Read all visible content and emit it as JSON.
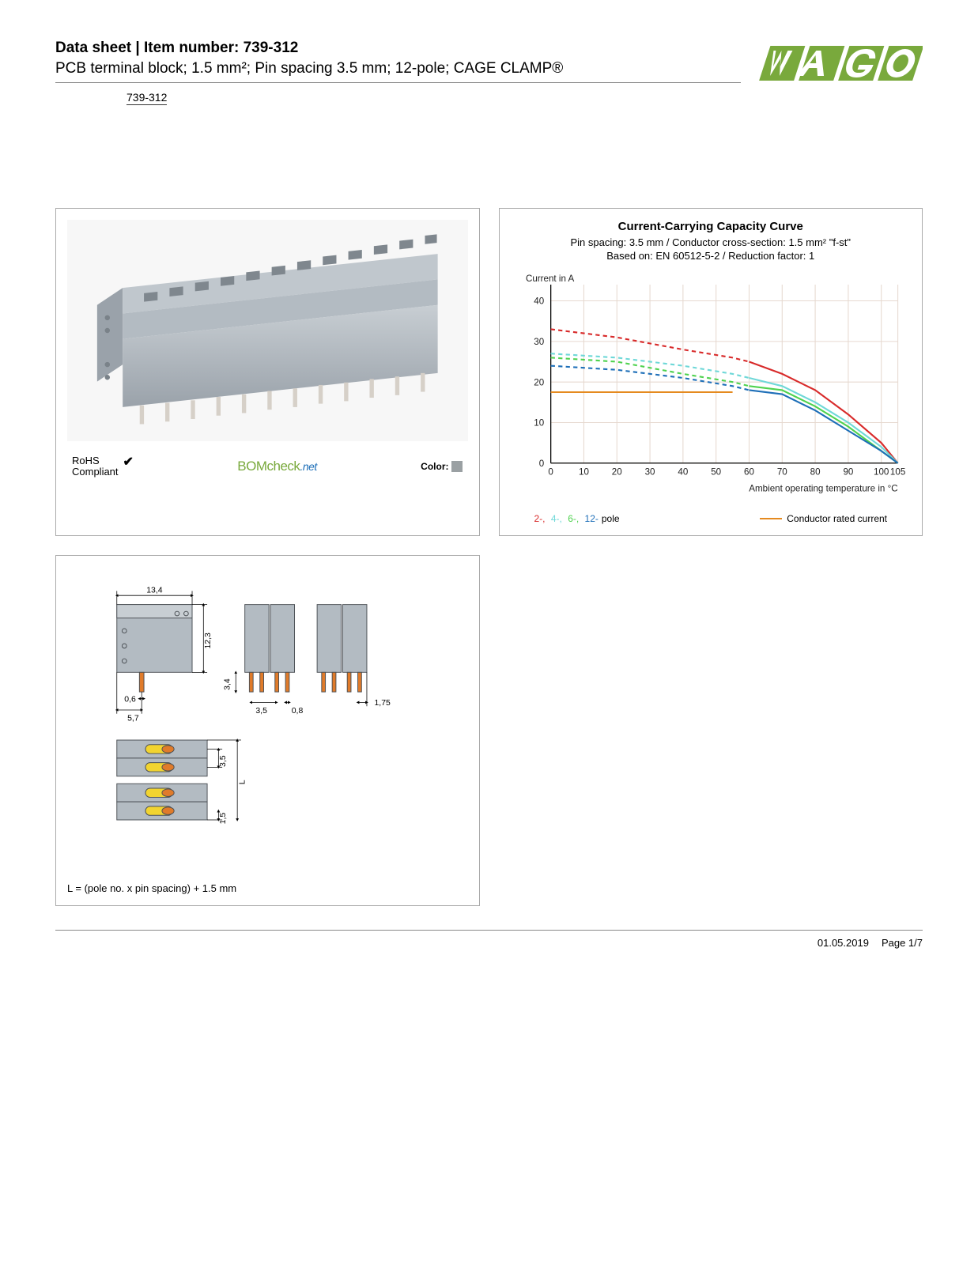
{
  "header": {
    "title_prefix": "Data sheet",
    "title_divider": " | ",
    "title_item_label": "Item number: ",
    "item_number": "739-312",
    "subtitle": "PCB terminal block; 1.5 mm²; Pin spacing 3.5 mm; 12-pole; CAGE CLAMP®",
    "item_code": "739-312"
  },
  "brand": {
    "name": "WAGO",
    "color": "#79a93c"
  },
  "product_panel": {
    "rohs_line1": "RoHS",
    "rohs_line2": "Compliant",
    "bomcheck_text": "BOMcheck",
    "bomcheck_suffix": ".net",
    "color_label": "Color:",
    "swatch_color": "#9aa0a3",
    "block_color": "#b3bbc2",
    "pin_color": "#d6d0c8"
  },
  "chart": {
    "title": "Current-Carrying Capacity Curve",
    "subtitle1": "Pin spacing: 3.5 mm / Conductor cross-section: 1.5 mm² \"f-st\"",
    "subtitle2": "Based on: EN 60512-5-2 / Reduction factor: 1",
    "y_axis_label": "Current in A",
    "x_axis_label": "Ambient operating temperature in °C",
    "x_ticks": [
      0,
      10,
      20,
      30,
      40,
      50,
      60,
      70,
      80,
      90,
      100,
      105
    ],
    "y_ticks": [
      0,
      10,
      20,
      30,
      40
    ],
    "xlim": [
      0,
      105
    ],
    "ylim": [
      0,
      44
    ],
    "grid_color": "#e6d9d0",
    "axis_color": "#000000",
    "background": "#ffffff",
    "series": [
      {
        "name": "2-pole",
        "label": "2-",
        "color": "#d82a2a",
        "dash": "5,4",
        "points": [
          [
            0,
            33
          ],
          [
            20,
            31
          ],
          [
            40,
            28
          ],
          [
            55,
            26
          ],
          [
            60,
            25
          ]
        ]
      },
      {
        "name": "4-pole",
        "label": "4-",
        "color": "#6fd8d8",
        "dash": "5,4",
        "points": [
          [
            0,
            27
          ],
          [
            20,
            26
          ],
          [
            40,
            24
          ],
          [
            55,
            22
          ],
          [
            60,
            21
          ]
        ]
      },
      {
        "name": "6-pole",
        "label": "6-",
        "color": "#4fd24f",
        "dash": "5,4",
        "points": [
          [
            0,
            26
          ],
          [
            20,
            25
          ],
          [
            40,
            22
          ],
          [
            55,
            20
          ],
          [
            60,
            19
          ]
        ]
      },
      {
        "name": "12-pole",
        "label": "12-",
        "color": "#1e6fb8",
        "dash": "5,4",
        "points": [
          [
            0,
            24
          ],
          [
            20,
            23
          ],
          [
            40,
            21
          ],
          [
            55,
            19
          ],
          [
            60,
            18
          ]
        ]
      },
      {
        "name": "2-pole-solid",
        "label": "",
        "color": "#d82a2a",
        "dash": "",
        "points": [
          [
            60,
            25
          ],
          [
            70,
            22
          ],
          [
            80,
            18
          ],
          [
            90,
            12
          ],
          [
            100,
            5
          ],
          [
            105,
            0
          ]
        ]
      },
      {
        "name": "4-pole-solid",
        "label": "",
        "color": "#6fd8d8",
        "dash": "",
        "points": [
          [
            60,
            21
          ],
          [
            70,
            19
          ],
          [
            80,
            15
          ],
          [
            90,
            10
          ],
          [
            100,
            4
          ],
          [
            105,
            0
          ]
        ]
      },
      {
        "name": "6-pole-solid",
        "label": "",
        "color": "#4fd24f",
        "dash": "",
        "points": [
          [
            60,
            19
          ],
          [
            70,
            18
          ],
          [
            80,
            14
          ],
          [
            90,
            9
          ],
          [
            100,
            3
          ],
          [
            105,
            0
          ]
        ]
      },
      {
        "name": "12-pole-solid",
        "label": "",
        "color": "#1e6fb8",
        "dash": "",
        "points": [
          [
            60,
            18
          ],
          [
            70,
            17
          ],
          [
            80,
            13
          ],
          [
            90,
            8
          ],
          [
            100,
            3
          ],
          [
            105,
            0
          ]
        ]
      }
    ],
    "conductor_rated": {
      "color": "#e58a1f",
      "value": 17.5,
      "xmax": 55,
      "label": "Conductor rated current"
    },
    "legend_pole_suffix": "pole"
  },
  "dimensions": {
    "caption": "L = (pole no. x pin spacing) + 1.5 mm",
    "values": {
      "width": "13,4",
      "height": "12,3",
      "pin_w": "0,6",
      "offset": "5,7",
      "pin_len": "3,4",
      "pitch": "3,5",
      "pin_thick": "0,8",
      "edge": "1,75",
      "row_pitch": "3,5",
      "row_edge": "1,5",
      "L": "L"
    },
    "body_color": "#b3bbc2",
    "copper_color": "#e07b2a",
    "spring_color": "#f2d430"
  },
  "footer": {
    "date": "01.05.2019",
    "page": "Page 1/7"
  }
}
